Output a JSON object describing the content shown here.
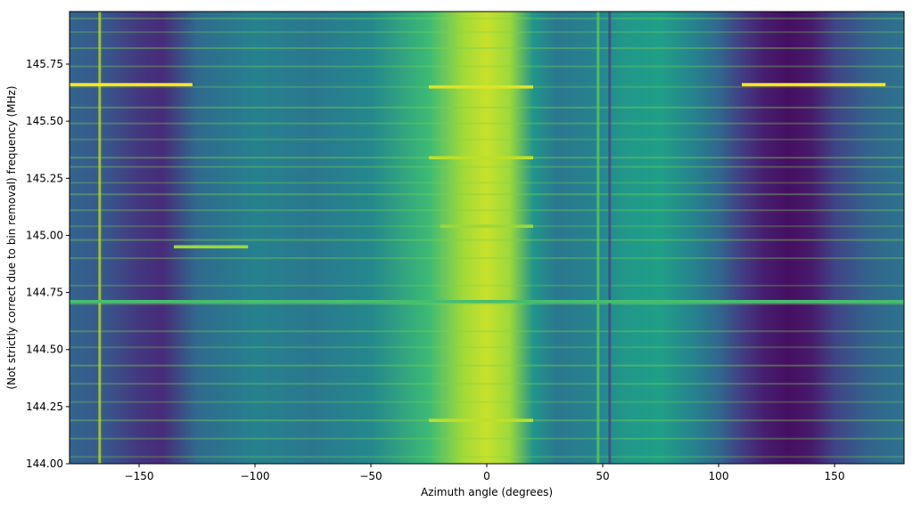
{
  "chart_data": {
    "type": "heatmap",
    "title": "",
    "xlabel": "Azimuth angle (degrees)",
    "ylabel": "(Not strictly correct due to bin removal) frequency (MHz)",
    "xlim": [
      -180,
      180
    ],
    "ylim": [
      144.0,
      145.98
    ],
    "grid": false,
    "colormap": "viridis",
    "x_ticks": [
      -150,
      -100,
      -50,
      0,
      50,
      100,
      150
    ],
    "x_tick_labels": [
      "−150",
      "−100",
      "−50",
      "0",
      "50",
      "100",
      "150"
    ],
    "y_ticks": [
      144.0,
      144.25,
      144.5,
      144.75,
      145.0,
      145.25,
      145.5,
      145.75
    ],
    "y_tick_labels": [
      "144.00",
      "144.25",
      "144.50",
      "144.75",
      "145.00",
      "145.25",
      "145.50",
      "145.75"
    ],
    "azimuth_intensity_profile": {
      "x": [
        -180,
        -165,
        -150,
        -140,
        -125,
        -100,
        -75,
        -50,
        -25,
        -10,
        0,
        10,
        20,
        30,
        45,
        60,
        75,
        90,
        100,
        110,
        120,
        130,
        140,
        150,
        165,
        180
      ],
      "values": [
        0.32,
        0.27,
        0.16,
        0.12,
        0.34,
        0.44,
        0.4,
        0.47,
        0.68,
        0.86,
        0.92,
        0.85,
        0.52,
        0.4,
        0.44,
        0.53,
        0.56,
        0.44,
        0.33,
        0.18,
        0.08,
        0.04,
        0.07,
        0.2,
        0.32,
        0.38
      ]
    },
    "bright_frequency_rows": [
      144.03,
      144.11,
      144.19,
      144.27,
      144.35,
      144.43,
      144.51,
      144.58,
      144.7,
      144.78,
      144.9,
      144.98,
      145.04,
      145.11,
      145.18,
      145.23,
      145.3,
      145.34,
      145.42,
      145.49,
      145.56,
      145.65,
      145.74,
      145.82,
      145.89,
      145.95
    ],
    "strong_signal_segments": [
      {
        "freq": 145.66,
        "x_start": -180,
        "x_end": -127,
        "intensity": 1.0
      },
      {
        "freq": 145.66,
        "x_start": 110,
        "x_end": 172,
        "intensity": 1.0
      },
      {
        "freq": 144.95,
        "x_start": -135,
        "x_end": -103,
        "intensity": 0.85
      },
      {
        "freq": 144.71,
        "x_start": -180,
        "x_end": 180,
        "intensity": 0.7
      },
      {
        "freq": 145.65,
        "x_start": -25,
        "x_end": 20,
        "intensity": 0.95
      },
      {
        "freq": 145.34,
        "x_start": -25,
        "x_end": 20,
        "intensity": 0.9
      },
      {
        "freq": 144.19,
        "x_start": -25,
        "x_end": 20,
        "intensity": 0.9
      },
      {
        "freq": 145.04,
        "x_start": -20,
        "x_end": 20,
        "intensity": 0.85
      }
    ],
    "vertical_artifacts": [
      {
        "azimuth": -167,
        "intensity": 0.9
      },
      {
        "azimuth": 48,
        "intensity": 0.75
      },
      {
        "azimuth": 53,
        "intensity": 0.2
      }
    ]
  }
}
